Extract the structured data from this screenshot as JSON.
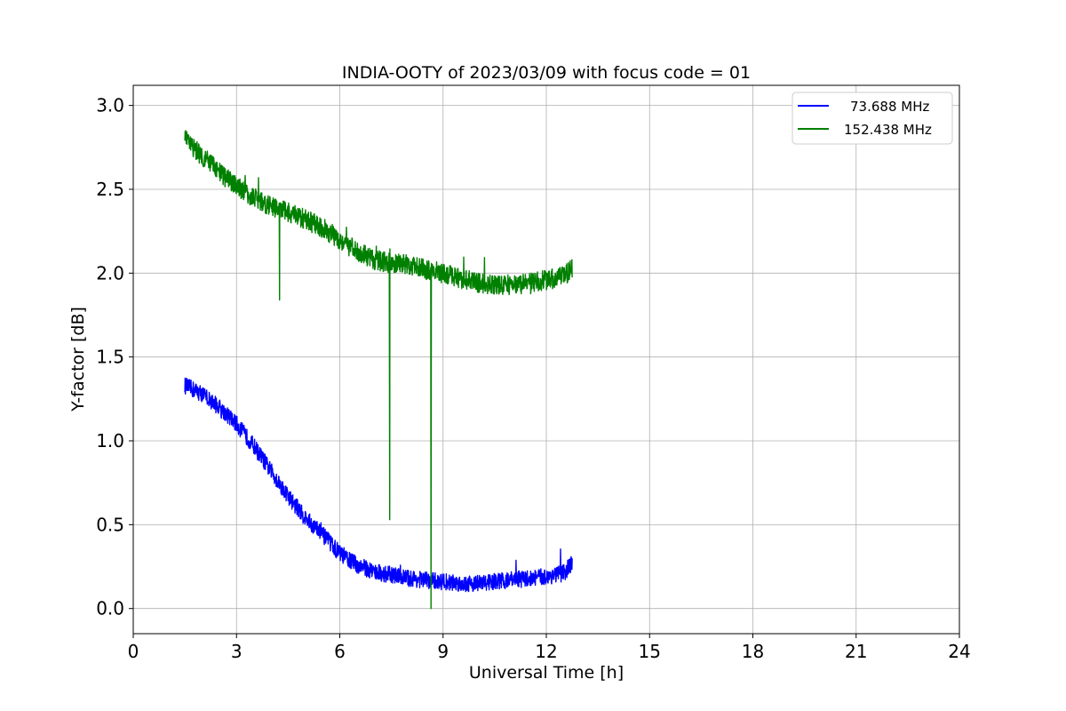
{
  "chart_data": {
    "type": "line",
    "title": "INDIA-OOTY of 2023/03/09 with focus code = 01",
    "xlabel": "Universal Time [h]",
    "ylabel": "Y-factor [dB]",
    "xlim": [
      0,
      24
    ],
    "ylim": [
      -0.15,
      3.12
    ],
    "xticks": [
      0,
      3,
      6,
      9,
      12,
      15,
      18,
      21,
      24
    ],
    "xtick_labels": [
      "0",
      "3",
      "6",
      "9",
      "12",
      "15",
      "18",
      "21",
      "24"
    ],
    "yticks": [
      0.0,
      0.5,
      1.0,
      1.5,
      2.0,
      2.5,
      3.0
    ],
    "ytick_labels": [
      "0.0",
      "0.5",
      "1.0",
      "1.5",
      "2.0",
      "2.5",
      "3.0"
    ],
    "grid": true,
    "legend_position": "top-right",
    "series": [
      {
        "name": "73.688 MHz",
        "color": "#0000ff",
        "x": [
          1.5,
          2.0,
          2.5,
          3.0,
          3.5,
          4.0,
          4.5,
          5.0,
          5.5,
          6.0,
          6.5,
          7.0,
          7.5,
          8.0,
          8.5,
          9.0,
          9.5,
          10.0,
          10.5,
          11.0,
          11.5,
          12.0,
          12.5,
          12.75
        ],
        "y": [
          1.33,
          1.28,
          1.2,
          1.1,
          0.97,
          0.82,
          0.67,
          0.54,
          0.44,
          0.33,
          0.26,
          0.22,
          0.2,
          0.18,
          0.17,
          0.16,
          0.15,
          0.15,
          0.16,
          0.17,
          0.18,
          0.19,
          0.21,
          0.27
        ],
        "noise": 0.05
      },
      {
        "name": "152.438 MHz",
        "color": "#008000",
        "x": [
          1.5,
          2.0,
          2.5,
          3.0,
          3.5,
          4.0,
          4.5,
          5.0,
          5.5,
          6.0,
          6.5,
          7.0,
          7.5,
          8.0,
          8.5,
          9.0,
          9.5,
          10.0,
          10.5,
          11.0,
          11.5,
          12.0,
          12.5,
          12.75
        ],
        "y": [
          2.8,
          2.7,
          2.6,
          2.52,
          2.45,
          2.4,
          2.36,
          2.32,
          2.27,
          2.2,
          2.13,
          2.08,
          2.06,
          2.05,
          2.02,
          2.0,
          1.97,
          1.94,
          1.93,
          1.93,
          1.94,
          1.96,
          1.98,
          2.03
        ],
        "noise": 0.06,
        "dips": [
          {
            "x": 4.25,
            "y": 1.84
          },
          {
            "x": 7.45,
            "y": 0.53
          },
          {
            "x": 8.65,
            "y": 0.0
          }
        ]
      }
    ]
  }
}
